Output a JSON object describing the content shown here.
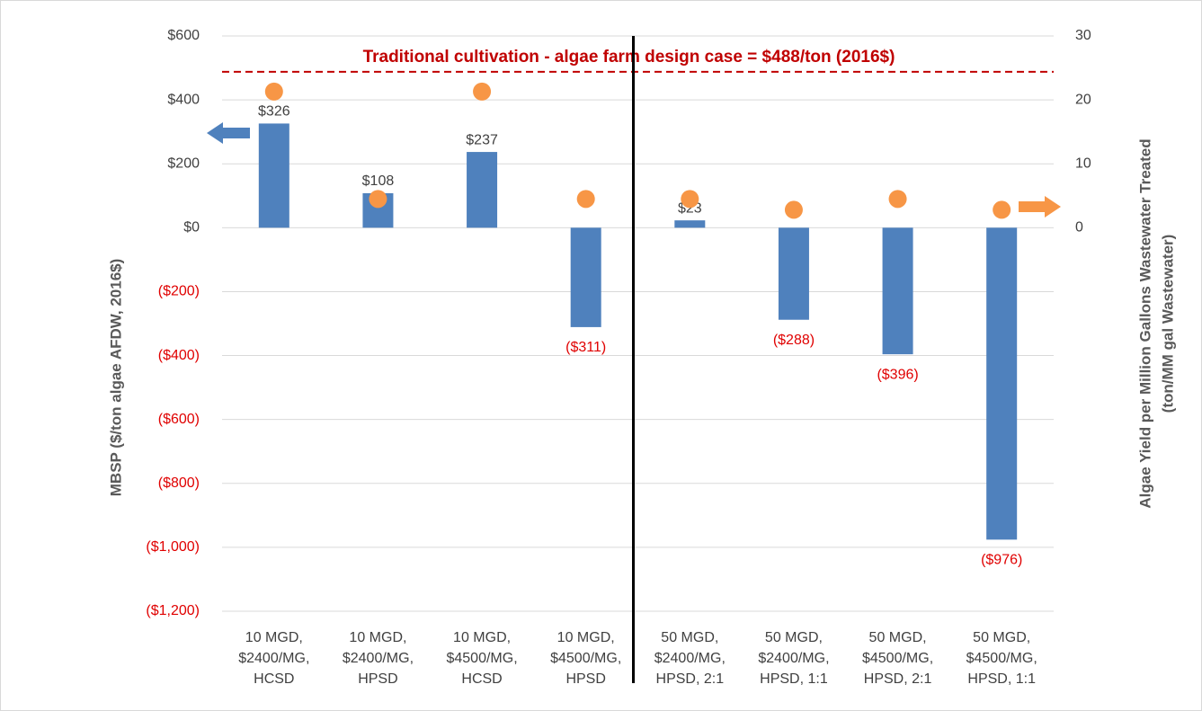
{
  "chart_data": {
    "type": "bar",
    "categories": [
      [
        "10 MGD,",
        "$2400/MG,",
        "HCSD"
      ],
      [
        "10 MGD,",
        "$2400/MG,",
        "HPSD"
      ],
      [
        "10 MGD,",
        "$4500/MG,",
        "HCSD"
      ],
      [
        "10 MGD,",
        "$4500/MG,",
        "HPSD"
      ],
      [
        "50 MGD,",
        "$2400/MG,",
        "HPSD, 2:1"
      ],
      [
        "50 MGD,",
        "$2400/MG,",
        "HPSD, 1:1"
      ],
      [
        "50 MGD,",
        "$4500/MG,",
        "HPSD, 2:1"
      ],
      [
        "50 MGD,",
        "$4500/MG,",
        "HPSD, 1:1"
      ]
    ],
    "series": [
      {
        "type": "bar",
        "color": "#4f81bd",
        "values": [
          326,
          108,
          237,
          -311,
          23,
          -288,
          -396,
          -976
        ],
        "value_labels": [
          "$326",
          "$108",
          "$237",
          "($311)",
          "$23",
          "($288)",
          "($396)",
          "($976)"
        ]
      },
      {
        "type": "scatter",
        "axis": "y2",
        "color": "#f79646",
        "values": [
          21.3,
          4.5,
          21.3,
          4.5,
          4.5,
          2.8,
          4.5,
          2.8
        ]
      }
    ],
    "ylabel": "MBSP ($/ton algae AFDW, 2016$)",
    "y2label": [
      "Algae Yield per Million Gallons Wastewater Treated",
      "(ton/MM gal Wastewater)"
    ],
    "ylim": [
      -1200,
      600
    ],
    "yticks": [
      {
        "value": 600,
        "label": "$600"
      },
      {
        "value": 400,
        "label": "$400"
      },
      {
        "value": 200,
        "label": "$200"
      },
      {
        "value": 0,
        "label": "$0"
      },
      {
        "value": -200,
        "label": "($200)"
      },
      {
        "value": -400,
        "label": "($400)"
      },
      {
        "value": -600,
        "label": "($600)"
      },
      {
        "value": -800,
        "label": "($800)"
      },
      {
        "value": -1000,
        "label": "($1,000)"
      },
      {
        "value": -1200,
        "label": "($1,200)"
      }
    ],
    "y2lim": [
      -60,
      30
    ],
    "y2ticks": [
      0,
      10,
      20,
      30
    ],
    "grid": true,
    "reference_line": {
      "value": 488,
      "color": "#c00000",
      "label": "Traditional cultivation - algae farm design case = $488/ton (2016$)"
    }
  }
}
